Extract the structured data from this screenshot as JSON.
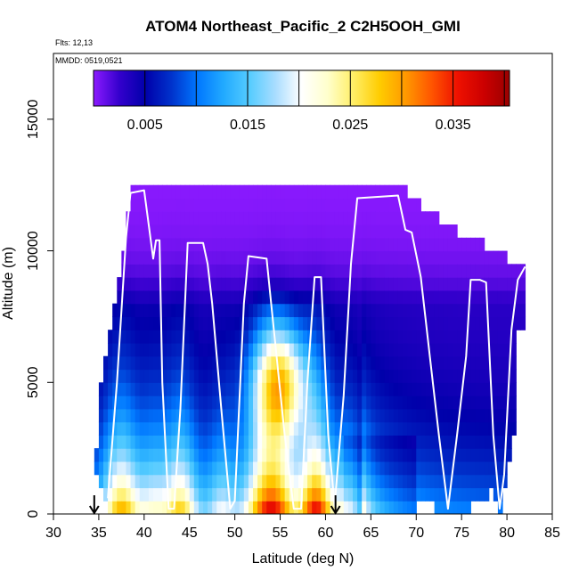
{
  "chart_data": {
    "type": "heatmap",
    "title": "ATOM4 Northeast_Pacific_2 C2H5OOH_GMI",
    "flights_label": "Flts: 12,13",
    "date_label": "MMDD: 0519,0521",
    "xlabel": "Latitude (deg N)",
    "ylabel": "Altitude (m)",
    "xlim": [
      30,
      85
    ],
    "ylim": [
      0,
      17500
    ],
    "x_ticks": [
      "30",
      "35",
      "40",
      "45",
      "50",
      "55",
      "60",
      "65",
      "70",
      "75",
      "80",
      "85"
    ],
    "y_ticks": [
      "0",
      "5000",
      "10000",
      "15000"
    ],
    "colorbar": {
      "range": [
        0,
        0.0405
      ],
      "tick_labels": [
        "0.005",
        "0.015",
        "0.025",
        "0.035"
      ],
      "tick_values": [
        0.005,
        0.015,
        0.025,
        0.035
      ],
      "divider_values": [
        0.0,
        0.005,
        0.01,
        0.015,
        0.02,
        0.025,
        0.03,
        0.035,
        0.04
      ],
      "colors": [
        "#8c1aff",
        "#3300cc",
        "#0000aa",
        "#0033cc",
        "#0077ff",
        "#22aaff",
        "#55ccff",
        "#aaddff",
        "#ffffff",
        "#ffffcc",
        "#ffee66",
        "#ffcc00",
        "#ff9900",
        "#ff5500",
        "#ee1100",
        "#cc0000",
        "#990000"
      ]
    },
    "column_tops_m": [
      {
        "lat": 34.5,
        "top": 2500
      },
      {
        "lat": 35.0,
        "top": 5000
      },
      {
        "lat": 35.5,
        "top": 6000
      },
      {
        "lat": 36.0,
        "top": 7000
      },
      {
        "lat": 36.5,
        "top": 8000
      },
      {
        "lat": 37.0,
        "top": 9000
      },
      {
        "lat": 37.5,
        "top": 10000
      },
      {
        "lat": 38.0,
        "top": 11200
      },
      {
        "lat": 38.5,
        "top": 12500
      },
      {
        "lat": 62.5,
        "top": 12500
      },
      {
        "lat": 68.0,
        "top": 12200
      },
      {
        "lat": 69.5,
        "top": 11800
      },
      {
        "lat": 71.0,
        "top": 11300
      },
      {
        "lat": 73.0,
        "top": 10800
      },
      {
        "lat": 75.0,
        "top": 10300
      },
      {
        "lat": 77.5,
        "top": 10000
      },
      {
        "lat": 80.0,
        "top": 9500
      },
      {
        "lat": 82.0,
        "top": 9500
      }
    ],
    "column_bottoms_m": [
      {
        "lat": 34.5,
        "bottom": 1500
      },
      {
        "lat": 35.5,
        "bottom": 500
      },
      {
        "lat": 36.0,
        "bottom": 0
      },
      {
        "lat": 69.0,
        "bottom": 0
      },
      {
        "lat": 70.0,
        "bottom": 800
      },
      {
        "lat": 74.0,
        "bottom": 0
      },
      {
        "lat": 78.0,
        "bottom": 1000
      },
      {
        "lat": 79.0,
        "bottom": 0
      },
      {
        "lat": 80.5,
        "bottom": 3000
      },
      {
        "lat": 81.0,
        "bottom": 7000
      }
    ],
    "flight_track": [
      [
        36.0,
        600
      ],
      [
        37.0,
        5000
      ],
      [
        38.0,
        10500
      ],
      [
        38.5,
        12200
      ],
      [
        40.0,
        12300
      ],
      [
        41.0,
        9700
      ],
      [
        41.3,
        10400
      ],
      [
        41.7,
        10400
      ],
      [
        42.0,
        5000
      ],
      [
        42.7,
        200
      ],
      [
        43.3,
        200
      ],
      [
        44.0,
        4000
      ],
      [
        44.8,
        10300
      ],
      [
        46.5,
        10300
      ],
      [
        47.0,
        9500
      ],
      [
        47.5,
        8000
      ],
      [
        48.5,
        4000
      ],
      [
        49.5,
        200
      ],
      [
        50.0,
        500
      ],
      [
        51.0,
        8000
      ],
      [
        51.5,
        9800
      ],
      [
        53.5,
        9700
      ],
      [
        54.0,
        8000
      ],
      [
        55.5,
        3000
      ],
      [
        56.5,
        200
      ],
      [
        57.3,
        200
      ],
      [
        58.0,
        5000
      ],
      [
        58.8,
        9000
      ],
      [
        59.5,
        9000
      ],
      [
        60.3,
        3000
      ],
      [
        61.0,
        300
      ],
      [
        62.0,
        4500
      ],
      [
        62.8,
        9500
      ],
      [
        63.5,
        12000
      ],
      [
        68.0,
        12100
      ],
      [
        68.8,
        10800
      ],
      [
        69.5,
        10700
      ],
      [
        70.5,
        9000
      ],
      [
        71.5,
        6000
      ],
      [
        72.5,
        3000
      ],
      [
        73.5,
        200
      ],
      [
        74.5,
        3000
      ],
      [
        75.5,
        6000
      ],
      [
        76.0,
        8900
      ],
      [
        77.0,
        8900
      ],
      [
        77.7,
        8800
      ],
      [
        78.5,
        3000
      ],
      [
        79.2,
        200
      ],
      [
        79.7,
        1500
      ],
      [
        80.5,
        7000
      ],
      [
        81.2,
        8900
      ],
      [
        82.0,
        9400
      ]
    ],
    "arrow_markers_lat": [
      34.5,
      61.1
    ]
  }
}
